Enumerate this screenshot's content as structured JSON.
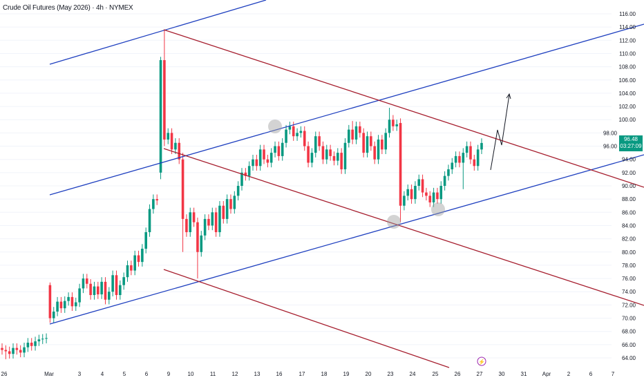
{
  "header": {
    "title": "Crude Oil Futures (May 2026) · 4h · NYMEX"
  },
  "price_axis": {
    "labels": [
      "116.00",
      "114.00",
      "112.00",
      "110.00",
      "108.00",
      "106.00",
      "104.00",
      "102.00",
      "100.00",
      "98.00",
      "96.00",
      "94.00",
      "92.00",
      "90.00",
      "88.00",
      "86.00",
      "84.00",
      "82.00",
      "80.00",
      "78.00",
      "76.00",
      "74.00",
      "72.00",
      "70.00",
      "68.00",
      "66.00",
      "64.00"
    ],
    "last_price": "96.48",
    "countdown": "03:27:09"
  },
  "time_axis": {
    "labels": [
      "26",
      "Mar",
      "3",
      "4",
      "5",
      "6",
      "9",
      "10",
      "11",
      "12",
      "13",
      "16",
      "17",
      "18",
      "19",
      "20",
      "23",
      "24",
      "25",
      "26",
      "27",
      "30",
      "31",
      "Apr",
      "2",
      "6",
      "7"
    ]
  },
  "colors": {
    "up": "#089981",
    "down": "#f23645",
    "blue_channel": "#1e3fbf",
    "red_channel": "#a61e2e",
    "event": "#9c27b0"
  },
  "chart_data": {
    "type": "candlestick",
    "ylim": [
      63,
      118
    ],
    "closes": [
      65.2,
      65.0,
      64.6,
      65.5,
      65.2,
      64.8,
      65.6,
      66.3,
      65.8,
      66.5,
      66.8,
      66.9,
      67.0,
      70,
      71,
      72.5,
      71.5,
      72.6,
      73.2,
      71.8,
      72.4,
      74.5,
      76,
      75.2,
      73.5,
      74.8,
      73.6,
      75.5,
      72.8,
      74,
      76.5,
      73.5,
      75,
      76.2,
      78,
      77.2,
      79.5,
      78.5,
      80.5,
      83,
      86.5,
      88,
      87.8,
      109,
      97,
      98,
      95.5,
      96.5,
      94,
      85,
      83,
      86,
      84.5,
      80,
      82.5,
      85,
      84,
      86,
      83,
      87,
      85,
      88,
      86.5,
      88.5,
      90,
      92,
      91.5,
      93,
      94,
      93,
      95.5,
      94,
      93.5,
      95,
      96,
      94.5,
      96.5,
      98.5,
      99,
      97.5,
      98,
      98.3,
      96,
      93.5,
      95,
      97.5,
      96,
      94,
      95.5,
      94.5,
      93.8,
      95,
      92.5,
      96.5,
      98.5,
      97,
      99,
      98,
      95,
      97.5,
      96,
      94,
      97,
      95.5,
      98,
      100,
      99,
      99.3,
      87,
      88.5,
      89.5,
      88,
      90,
      91,
      89,
      88.5,
      87.5,
      89,
      88,
      90,
      91.5,
      92.5,
      93.5,
      94.5,
      93.5,
      95,
      96,
      94,
      93,
      95.5,
      96.48
    ],
    "open_overrides": {
      "13": 75,
      "43": 92,
      "108": 99.5
    },
    "high_overrides": {
      "13": 75.4,
      "43": 109.5,
      "44": 113.5,
      "49": 95,
      "105": 101.8,
      "95": 99.8
    },
    "low_overrides": {
      "43": 91,
      "44": 96,
      "49": 80,
      "53": 76,
      "108": 84.5,
      "1": 63.8,
      "125": 89.5
    }
  }
}
